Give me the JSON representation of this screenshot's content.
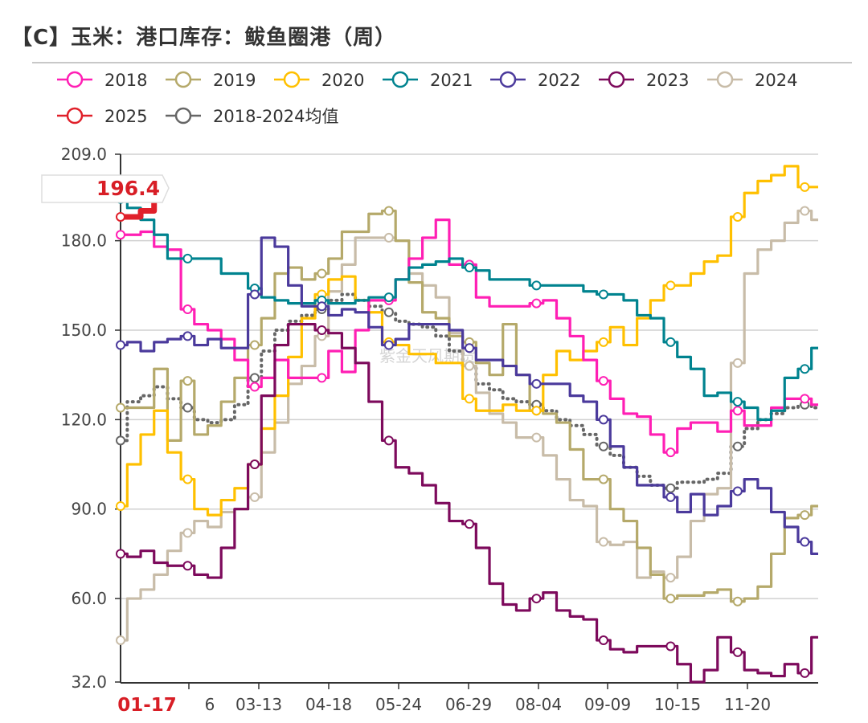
{
  "title": "【C】玉米：港口库存：鲅鱼圈港（周）",
  "watermark": "紫金天风期货",
  "chart_data": {
    "type": "line",
    "step": true,
    "title": "【C】玉米：港口库存：鲅鱼圈港（周）",
    "ylim": [
      32,
      209
    ],
    "y_ticks": [
      "209.0",
      "180.0",
      "150.0",
      "120.0",
      "90.0",
      "60.0",
      "32.0"
    ],
    "x_ticks": [
      "6",
      "03-13",
      "04-18",
      "05-24",
      "06-29",
      "08-04",
      "09-09",
      "10-15",
      "11-20"
    ],
    "current_x_label": "01-17",
    "current_value_label": "196.4",
    "grid": true,
    "legend_position": "top-left",
    "series": [
      {
        "name": "2018",
        "color": "#ff1fb4",
        "values": [
          182,
          182,
          183,
          178,
          177,
          157,
          152,
          150,
          147,
          140,
          131,
          134,
          140,
          134,
          134,
          134,
          143,
          136,
          150,
          160,
          160,
          167,
          174,
          181,
          187,
          172,
          172,
          161,
          158,
          158,
          158,
          159,
          160,
          154,
          148,
          140,
          133,
          127,
          122,
          121,
          115,
          109,
          117,
          119,
          119,
          116,
          123,
          118,
          118,
          124,
          127,
          127,
          125
        ]
      },
      {
        "name": "2019",
        "color": "#b5a96a",
        "values": [
          124,
          124,
          124,
          137,
          113,
          133,
          115,
          118,
          126,
          134,
          145,
          154,
          169,
          171,
          167,
          169,
          174,
          183,
          183,
          189,
          190,
          180,
          166,
          156,
          154,
          148,
          146,
          139,
          135,
          152,
          135,
          123,
          122,
          119,
          110,
          100,
          100,
          90,
          86,
          77,
          68,
          60,
          61,
          61,
          62,
          63,
          59,
          60,
          64,
          75,
          87,
          88,
          91
        ]
      },
      {
        "name": "2020",
        "color": "#ffc000",
        "values": [
          91,
          105,
          115,
          123,
          109,
          100,
          90,
          88,
          93,
          97,
          105,
          117,
          128,
          141,
          154,
          162,
          167,
          168,
          160,
          156,
          146,
          145,
          142,
          142,
          139,
          139,
          127,
          123,
          123,
          125,
          123,
          123,
          135,
          143,
          140,
          143,
          146,
          151,
          145,
          154,
          160,
          165,
          165,
          169,
          173,
          175,
          188,
          196,
          200,
          202,
          205,
          198,
          198
        ]
      },
      {
        "name": "2021",
        "color": "#00838f",
        "values": [
          194,
          191,
          187,
          182,
          174,
          174,
          174,
          174,
          169,
          169,
          164,
          161,
          160,
          159,
          159,
          160,
          159,
          159,
          160,
          161,
          161,
          167,
          171,
          172,
          173,
          174,
          171,
          170,
          167,
          167,
          167,
          165,
          165,
          165,
          165,
          163,
          162,
          162,
          160,
          155,
          154,
          146,
          141,
          137,
          128,
          129,
          126,
          124,
          120,
          123,
          134,
          137,
          144
        ]
      },
      {
        "name": "2022",
        "color": "#4b3a9c",
        "values": [
          145,
          146,
          143,
          146,
          147,
          148,
          145,
          147,
          144,
          144,
          162,
          181,
          178,
          165,
          158,
          158,
          155,
          157,
          156,
          151,
          145,
          147,
          152,
          152,
          152,
          150,
          144,
          140,
          140,
          138,
          135,
          132,
          132,
          132,
          128,
          126,
          120,
          111,
          104,
          98,
          98,
          94,
          89,
          95,
          88,
          91,
          96,
          100,
          97,
          89,
          84,
          79,
          75
        ]
      },
      {
        "name": "2023",
        "color": "#7d0a5c",
        "values": [
          75,
          74,
          76,
          72,
          71,
          71,
          68,
          67,
          77,
          90,
          105,
          128,
          145,
          152,
          152,
          150,
          149,
          144,
          139,
          126,
          113,
          104,
          102,
          98,
          92,
          86,
          85,
          77,
          65,
          58,
          56,
          60,
          62,
          56,
          54,
          53,
          46,
          43,
          42,
          44,
          44,
          44,
          38,
          32,
          36,
          47,
          42,
          36,
          35,
          34,
          38,
          35,
          47
        ]
      },
      {
        "name": "2024",
        "color": "#c8bca8",
        "values": [
          46,
          60,
          63,
          68,
          76,
          82,
          86,
          84,
          89,
          90,
          94,
          109,
          119,
          132,
          138,
          148,
          163,
          172,
          181,
          181,
          181,
          180,
          169,
          165,
          161,
          149,
          138,
          129,
          122,
          119,
          114,
          114,
          108,
          100,
          93,
          91,
          79,
          78,
          79,
          67,
          69,
          67,
          74,
          86,
          95,
          97,
          139,
          169,
          177,
          180,
          186,
          190,
          187
        ]
      },
      {
        "name": "2025",
        "color": "#e0202a",
        "values": [
          188,
          188,
          190,
          196.4
        ]
      },
      {
        "name": "2018-2024均值",
        "color": "#666666",
        "dotted": true,
        "values": [
          113,
          126,
          128,
          131,
          127,
          124,
          120,
          119,
          120,
          125,
          134,
          143,
          150,
          153,
          155,
          157,
          160,
          162,
          160,
          158,
          156,
          153,
          152,
          151,
          148,
          143,
          138,
          132,
          130,
          127,
          126,
          125,
          123,
          120,
          118,
          115,
          111,
          108,
          104,
          101,
          98,
          97,
          99,
          99,
          100,
          102,
          111,
          117,
          120,
          122,
          124,
          125,
          124
        ]
      }
    ]
  }
}
